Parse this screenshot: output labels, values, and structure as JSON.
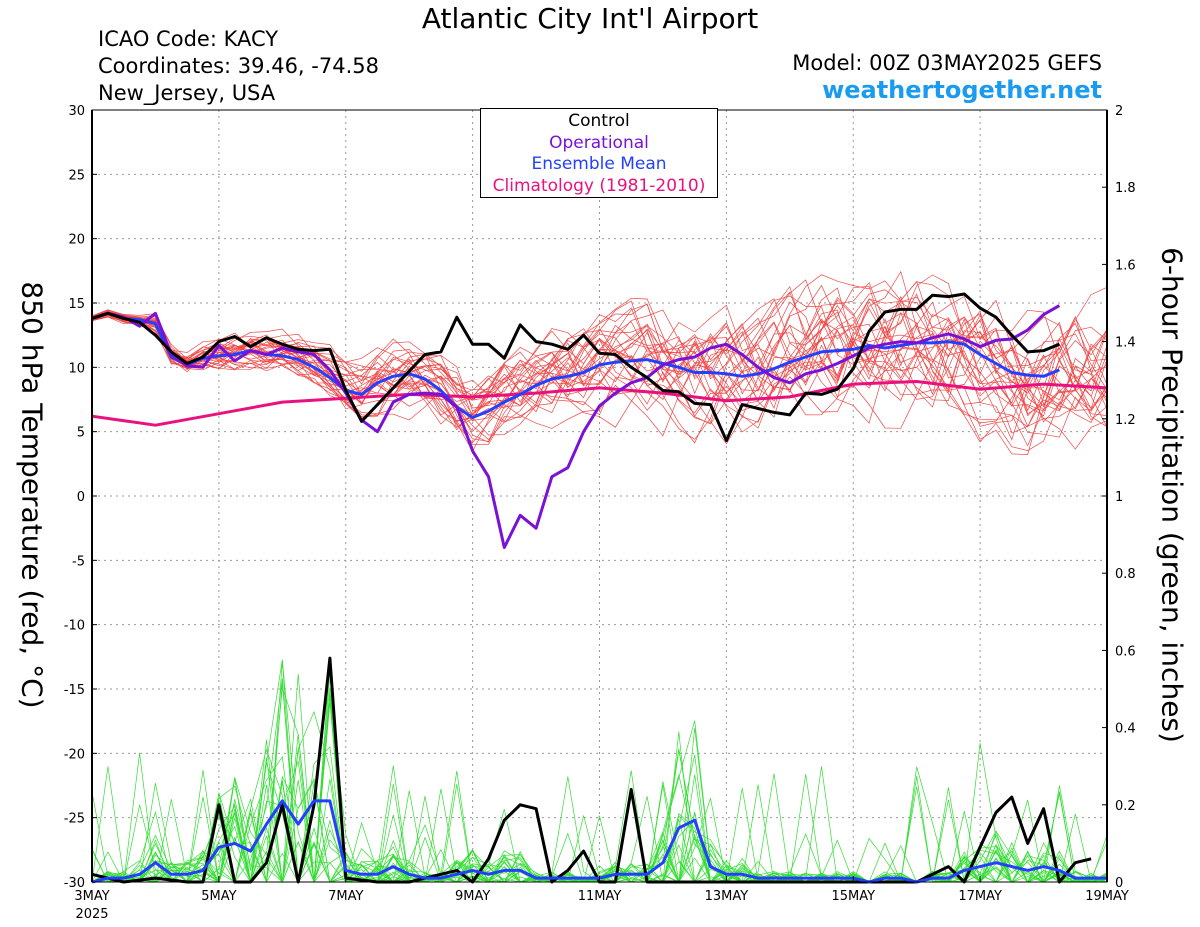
{
  "header": {
    "title": "Atlantic City Int'l Airport",
    "icao": "ICAO Code: KACY",
    "coordinates": "Coordinates: 39.46, -74.58",
    "location": "New_Jersey, USA",
    "model": "Model: 00Z 03MAY2025 GEFS",
    "site": "weathertogether.net"
  },
  "colors": {
    "members_temp": "#f04848",
    "members_precip": "#33dd33",
    "control": "#000000",
    "operational": "#7a12d6",
    "ensemble_mean": "#2440ff",
    "climatology": "#e8117f",
    "site": "#1a9bf0"
  },
  "legend": {
    "control": "Control",
    "operational": "Operational",
    "ensemble_mean": "Ensemble Mean",
    "climatology": "Climatology (1981-2010)"
  },
  "chart_data": {
    "type": "line",
    "title": "Atlantic City Int'l Airport",
    "ylabel_left": "850 hPa Temperature (red, °C)",
    "ylabel_right": "6-hour Precipitation (green, inches)",
    "x_unit": "days since 00Z 03MAY2025",
    "xlim": [
      0,
      16
    ],
    "ylim_left": [
      -30,
      30
    ],
    "ylim_right": [
      0,
      2
    ],
    "x_ticks": [
      {
        "x": 0,
        "label": "3MAY",
        "sub": "2025"
      },
      {
        "x": 2,
        "label": "5MAY"
      },
      {
        "x": 4,
        "label": "7MAY"
      },
      {
        "x": 6,
        "label": "9MAY"
      },
      {
        "x": 8,
        "label": "11MAY"
      },
      {
        "x": 10,
        "label": "13MAY"
      },
      {
        "x": 12,
        "label": "15MAY"
      },
      {
        "x": 14,
        "label": "17MAY"
      },
      {
        "x": 16,
        "label": "19MAY"
      }
    ],
    "y_ticks_left": [
      "30",
      "25",
      "20",
      "15",
      "10",
      "5",
      "0",
      "-5",
      "-10",
      "-15",
      "-20",
      "-25",
      "-30"
    ],
    "y_ticks_right": [
      "2",
      "1.8",
      "1.6",
      "1.4",
      "1.2",
      "1",
      "0.8",
      "0.6",
      "0.4",
      "0.2",
      "0"
    ],
    "grid": true,
    "temperature": {
      "control": [
        [
          0,
          13.8
        ],
        [
          0.25,
          14.2
        ],
        [
          0.5,
          13.8
        ],
        [
          0.75,
          13.5
        ],
        [
          1,
          12.5
        ],
        [
          1.25,
          11.2
        ],
        [
          1.5,
          10.3
        ],
        [
          1.75,
          10.8
        ],
        [
          2,
          12.0
        ],
        [
          2.25,
          12.4
        ],
        [
          2.5,
          11.6
        ],
        [
          2.75,
          12.3
        ],
        [
          3,
          11.8
        ],
        [
          3.25,
          11.4
        ],
        [
          3.5,
          11.3
        ],
        [
          3.75,
          11.4
        ],
        [
          4,
          8.2
        ],
        [
          4.25,
          5.8
        ],
        [
          4.5,
          7.1
        ],
        [
          4.75,
          8.4
        ],
        [
          5,
          9.7
        ],
        [
          5.25,
          11.0
        ],
        [
          5.5,
          11.2
        ],
        [
          5.75,
          13.9
        ],
        [
          6,
          11.8
        ],
        [
          6.25,
          11.8
        ],
        [
          6.5,
          10.7
        ],
        [
          6.75,
          13.3
        ],
        [
          7,
          12.0
        ],
        [
          7.25,
          11.8
        ],
        [
          7.5,
          11.4
        ],
        [
          7.75,
          12.5
        ],
        [
          8,
          11.1
        ],
        [
          8.25,
          11.0
        ],
        [
          8.5,
          10.0
        ],
        [
          8.75,
          9.2
        ],
        [
          9,
          8.2
        ],
        [
          9.25,
          8.1
        ],
        [
          9.5,
          7.2
        ],
        [
          9.75,
          7.1
        ],
        [
          10,
          4.3
        ],
        [
          10.25,
          7.1
        ],
        [
          10.5,
          6.8
        ],
        [
          10.75,
          6.5
        ],
        [
          11,
          6.3
        ],
        [
          11.25,
          8.0
        ],
        [
          11.5,
          7.9
        ],
        [
          11.75,
          8.3
        ],
        [
          12,
          9.9
        ],
        [
          12.25,
          12.8
        ],
        [
          12.5,
          14.3
        ],
        [
          12.75,
          14.5
        ],
        [
          13,
          14.5
        ],
        [
          13.25,
          15.6
        ],
        [
          13.5,
          15.5
        ],
        [
          13.75,
          15.7
        ],
        [
          14,
          14.6
        ],
        [
          14.25,
          13.9
        ],
        [
          14.5,
          12.5
        ],
        [
          14.75,
          11.2
        ],
        [
          15,
          11.3
        ],
        [
          15.25,
          11.8
        ]
      ],
      "operational": [
        [
          0,
          13.8
        ],
        [
          0.25,
          14.2
        ],
        [
          0.5,
          13.9
        ],
        [
          0.75,
          13.2
        ],
        [
          1,
          14.2
        ],
        [
          1.25,
          11.0
        ],
        [
          1.5,
          10.1
        ],
        [
          1.75,
          10.0
        ],
        [
          2,
          11.7
        ],
        [
          2.25,
          10.5
        ],
        [
          2.5,
          11.3
        ],
        [
          2.75,
          11.0
        ],
        [
          3,
          11.5
        ],
        [
          3.25,
          11.2
        ],
        [
          3.5,
          11.0
        ],
        [
          3.75,
          9.8
        ],
        [
          4,
          8.0
        ],
        [
          4.25,
          5.9
        ],
        [
          4.5,
          5.0
        ],
        [
          4.75,
          7.3
        ],
        [
          5,
          7.9
        ],
        [
          5.25,
          8.0
        ],
        [
          5.5,
          7.9
        ],
        [
          5.75,
          6.9
        ],
        [
          6,
          3.5
        ],
        [
          6.25,
          1.5
        ],
        [
          6.5,
          -4.0
        ],
        [
          6.75,
          -1.5
        ],
        [
          7,
          -2.5
        ],
        [
          7.25,
          1.5
        ],
        [
          7.5,
          2.2
        ],
        [
          7.75,
          5.0
        ],
        [
          8,
          7.0
        ],
        [
          8.25,
          8.0
        ],
        [
          8.5,
          8.8
        ],
        [
          8.75,
          9.2
        ],
        [
          9,
          10.2
        ],
        [
          9.25,
          10.6
        ],
        [
          9.5,
          10.8
        ],
        [
          9.75,
          11.5
        ],
        [
          10,
          11.8
        ],
        [
          10.25,
          11.0
        ],
        [
          10.5,
          10.0
        ],
        [
          10.75,
          9.2
        ],
        [
          11,
          8.8
        ],
        [
          11.25,
          9.5
        ],
        [
          11.5,
          9.8
        ],
        [
          11.75,
          10.3
        ],
        [
          12,
          10.9
        ],
        [
          12.25,
          11.5
        ],
        [
          12.5,
          11.8
        ],
        [
          12.75,
          12.0
        ],
        [
          13,
          11.9
        ],
        [
          13.25,
          12.3
        ],
        [
          13.5,
          12.6
        ],
        [
          13.75,
          12.2
        ],
        [
          14,
          11.6
        ],
        [
          14.25,
          12.1
        ],
        [
          14.5,
          12.2
        ],
        [
          14.75,
          12.9
        ],
        [
          15,
          14.1
        ],
        [
          15.25,
          14.8
        ]
      ],
      "ensemble_mean": [
        [
          0,
          13.8
        ],
        [
          0.25,
          14.2
        ],
        [
          0.5,
          13.8
        ],
        [
          0.75,
          13.7
        ],
        [
          1,
          13.4
        ],
        [
          1.25,
          10.8
        ],
        [
          1.5,
          10.2
        ],
        [
          1.75,
          10.7
        ],
        [
          2,
          10.9
        ],
        [
          2.25,
          11.0
        ],
        [
          2.5,
          11.3
        ],
        [
          2.75,
          11.0
        ],
        [
          3,
          10.9
        ],
        [
          3.25,
          10.6
        ],
        [
          3.5,
          10.0
        ],
        [
          3.75,
          9.2
        ],
        [
          4,
          8.2
        ],
        [
          4.25,
          7.9
        ],
        [
          4.5,
          8.8
        ],
        [
          4.75,
          9.3
        ],
        [
          5,
          9.5
        ],
        [
          5.25,
          9.1
        ],
        [
          5.5,
          8.2
        ],
        [
          5.75,
          6.9
        ],
        [
          6,
          6.1
        ],
        [
          6.25,
          6.6
        ],
        [
          6.5,
          7.3
        ],
        [
          6.75,
          7.9
        ],
        [
          7,
          8.6
        ],
        [
          7.25,
          9.1
        ],
        [
          7.5,
          9.3
        ],
        [
          7.75,
          9.6
        ],
        [
          8,
          10.2
        ],
        [
          8.25,
          10.4
        ],
        [
          8.5,
          10.5
        ],
        [
          8.75,
          10.6
        ],
        [
          9,
          10.3
        ],
        [
          9.25,
          10.0
        ],
        [
          9.5,
          9.6
        ],
        [
          9.75,
          9.6
        ],
        [
          10,
          9.5
        ],
        [
          10.25,
          9.3
        ],
        [
          10.5,
          9.5
        ],
        [
          10.75,
          9.9
        ],
        [
          11,
          10.4
        ],
        [
          11.25,
          10.8
        ],
        [
          11.5,
          11.2
        ],
        [
          11.75,
          11.3
        ],
        [
          12,
          11.4
        ],
        [
          12.25,
          11.7
        ],
        [
          12.5,
          11.5
        ],
        [
          12.75,
          11.7
        ],
        [
          13,
          11.9
        ],
        [
          13.25,
          11.9
        ],
        [
          13.5,
          12.0
        ],
        [
          13.75,
          11.8
        ],
        [
          14,
          11.0
        ],
        [
          14.25,
          10.3
        ],
        [
          14.5,
          9.6
        ],
        [
          14.75,
          9.4
        ],
        [
          15,
          9.3
        ],
        [
          15.25,
          9.8
        ]
      ],
      "climatology": [
        [
          0,
          6.2
        ],
        [
          1,
          5.5
        ],
        [
          2,
          6.4
        ],
        [
          3,
          7.3
        ],
        [
          4,
          7.6
        ],
        [
          5,
          7.9
        ],
        [
          6,
          7.7
        ],
        [
          7,
          8.0
        ],
        [
          8,
          8.4
        ],
        [
          9,
          8.0
        ],
        [
          10,
          7.4
        ],
        [
          11,
          7.7
        ],
        [
          12,
          8.7
        ],
        [
          13,
          8.9
        ],
        [
          14,
          8.3
        ],
        [
          15,
          8.7
        ],
        [
          16,
          8.4
        ]
      ]
    },
    "precipitation": {
      "control": [
        [
          0,
          0.02
        ],
        [
          0.5,
          0.0
        ],
        [
          1,
          0.01
        ],
        [
          1.5,
          0.0
        ],
        [
          1.75,
          0.0
        ],
        [
          2,
          0.2
        ],
        [
          2.25,
          0.0
        ],
        [
          2.5,
          0.0
        ],
        [
          2.75,
          0.05
        ],
        [
          3,
          0.2
        ],
        [
          3.25,
          0.0
        ],
        [
          3.5,
          0.2
        ],
        [
          3.75,
          0.58
        ],
        [
          4,
          0.01
        ],
        [
          4.5,
          0.0
        ],
        [
          5,
          0.0
        ],
        [
          5.5,
          0.02
        ],
        [
          5.75,
          0.03
        ],
        [
          6,
          0.0
        ],
        [
          6.25,
          0.06
        ],
        [
          6.5,
          0.16
        ],
        [
          6.75,
          0.2
        ],
        [
          7,
          0.19
        ],
        [
          7.25,
          0.0
        ],
        [
          7.5,
          0.03
        ],
        [
          7.75,
          0.08
        ],
        [
          8,
          0.0
        ],
        [
          8.25,
          0.0
        ],
        [
          8.5,
          0.24
        ],
        [
          8.75,
          0.0
        ],
        [
          9,
          0.0
        ],
        [
          10,
          0.0
        ],
        [
          11,
          0.0
        ],
        [
          12,
          0.0
        ],
        [
          13,
          0.0
        ],
        [
          13.5,
          0.04
        ],
        [
          13.75,
          0.0
        ],
        [
          14,
          0.09
        ],
        [
          14.25,
          0.18
        ],
        [
          14.5,
          0.22
        ],
        [
          14.75,
          0.1
        ],
        [
          15,
          0.19
        ],
        [
          15.25,
          0.0
        ],
        [
          15.5,
          0.05
        ],
        [
          15.75,
          0.06
        ]
      ],
      "ensemble_mean": [
        [
          0,
          0.0
        ],
        [
          0.25,
          0.01
        ],
        [
          0.5,
          0.01
        ],
        [
          0.75,
          0.02
        ],
        [
          1,
          0.05
        ],
        [
          1.25,
          0.02
        ],
        [
          1.5,
          0.02
        ],
        [
          1.75,
          0.03
        ],
        [
          2,
          0.09
        ],
        [
          2.25,
          0.1
        ],
        [
          2.5,
          0.08
        ],
        [
          2.75,
          0.15
        ],
        [
          3,
          0.21
        ],
        [
          3.25,
          0.15
        ],
        [
          3.5,
          0.21
        ],
        [
          3.75,
          0.21
        ],
        [
          4,
          0.03
        ],
        [
          4.25,
          0.02
        ],
        [
          4.5,
          0.02
        ],
        [
          4.75,
          0.04
        ],
        [
          5,
          0.02
        ],
        [
          5.25,
          0.01
        ],
        [
          5.5,
          0.01
        ],
        [
          5.75,
          0.02
        ],
        [
          6,
          0.03
        ],
        [
          6.25,
          0.02
        ],
        [
          6.5,
          0.03
        ],
        [
          6.75,
          0.03
        ],
        [
          7,
          0.01
        ],
        [
          7.25,
          0.01
        ],
        [
          7.5,
          0.01
        ],
        [
          7.75,
          0.01
        ],
        [
          8,
          0.01
        ],
        [
          8.25,
          0.02
        ],
        [
          8.5,
          0.02
        ],
        [
          8.75,
          0.02
        ],
        [
          9,
          0.05
        ],
        [
          9.25,
          0.14
        ],
        [
          9.5,
          0.16
        ],
        [
          9.75,
          0.04
        ],
        [
          10,
          0.02
        ],
        [
          10.25,
          0.02
        ],
        [
          10.5,
          0.01
        ],
        [
          10.75,
          0.01
        ],
        [
          11,
          0.01
        ],
        [
          11.25,
          0.01
        ],
        [
          11.5,
          0.01
        ],
        [
          11.75,
          0.01
        ],
        [
          12,
          0.01
        ],
        [
          12.25,
          0.0
        ],
        [
          12.5,
          0.01
        ],
        [
          12.75,
          0.01
        ],
        [
          13,
          0.0
        ],
        [
          13.25,
          0.01
        ],
        [
          13.5,
          0.01
        ],
        [
          13.75,
          0.03
        ],
        [
          14,
          0.04
        ],
        [
          14.25,
          0.05
        ],
        [
          14.5,
          0.04
        ],
        [
          14.75,
          0.03
        ],
        [
          15,
          0.04
        ],
        [
          15.25,
          0.03
        ],
        [
          15.5,
          0.01
        ],
        [
          15.75,
          0.01
        ],
        [
          16,
          0.01
        ]
      ]
    }
  }
}
